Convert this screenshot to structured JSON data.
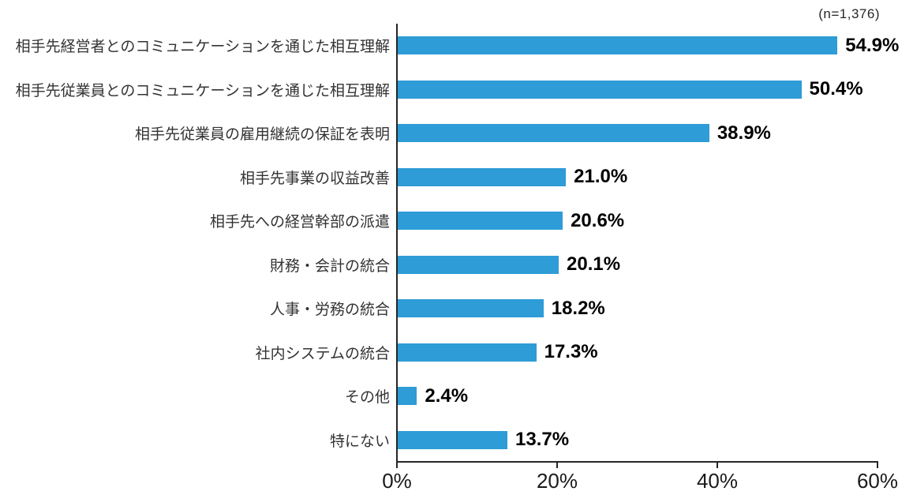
{
  "chart_data": {
    "type": "bar",
    "orientation": "horizontal",
    "sample_size_label": "(n=1,376)",
    "categories": [
      "相手先経営者とのコミュニケーションを通じた相互理解",
      "相手先従業員とのコミュニケーションを通じた相互理解",
      "相手先従業員の雇用継続の保証を表明",
      "相手先事業の収益改善",
      "相手先への経営幹部の派遣",
      "財務・会計の統合",
      "人事・労務の統合",
      "社内システムの統合",
      "その他",
      "特にない"
    ],
    "values": [
      54.9,
      50.4,
      38.9,
      21.0,
      20.6,
      20.1,
      18.2,
      17.3,
      2.4,
      13.7
    ],
    "value_labels": [
      "54.9%",
      "50.4%",
      "38.9%",
      "21.0%",
      "20.6%",
      "20.1%",
      "18.2%",
      "17.3%",
      "2.4%",
      "13.7%"
    ],
    "xlabel": "",
    "ylabel": "",
    "xlim": [
      0,
      60
    ],
    "x_tick_values": [
      0,
      20,
      40,
      60
    ],
    "x_tick_labels": [
      "0%",
      "20%",
      "40%",
      "60%"
    ],
    "grid": false,
    "legend": false,
    "bar_color": "#2E9CD6",
    "axis_color": "#262626",
    "category_text_color": "#333333",
    "value_text_color": "#000000"
  },
  "layout_note": ""
}
